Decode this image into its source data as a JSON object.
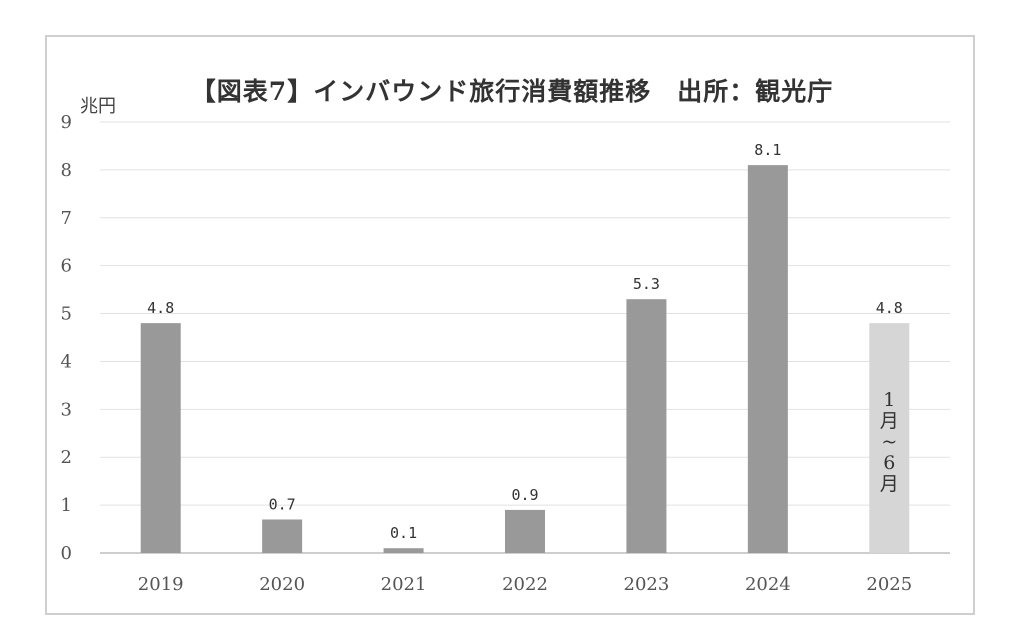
{
  "chart_data": {
    "type": "bar",
    "title": "【図表7】インバウンド旅行消費額推移　出所：観光庁",
    "ylabel": "兆円",
    "xlabel": "",
    "categories": [
      "2019",
      "2020",
      "2021",
      "2022",
      "2023",
      "2024",
      "2025"
    ],
    "values": [
      4.8,
      0.7,
      0.1,
      0.9,
      5.3,
      8.1,
      4.8
    ],
    "data_labels": [
      "4.8",
      "0.7",
      "0.1",
      "0.9",
      "5.3",
      "8.1",
      "4.8"
    ],
    "ylim": [
      0,
      9
    ],
    "yticks": [
      0,
      1,
      2,
      3,
      4,
      5,
      6,
      7,
      8,
      9
    ],
    "grid": true,
    "legend": "none",
    "bar_colors": [
      "#999999",
      "#999999",
      "#999999",
      "#999999",
      "#999999",
      "#999999",
      "#d6d6d6"
    ],
    "annotation": {
      "category": "2025",
      "text": "1月~6月",
      "chars": [
        "1",
        "月",
        "~",
        "6",
        "月"
      ]
    }
  }
}
